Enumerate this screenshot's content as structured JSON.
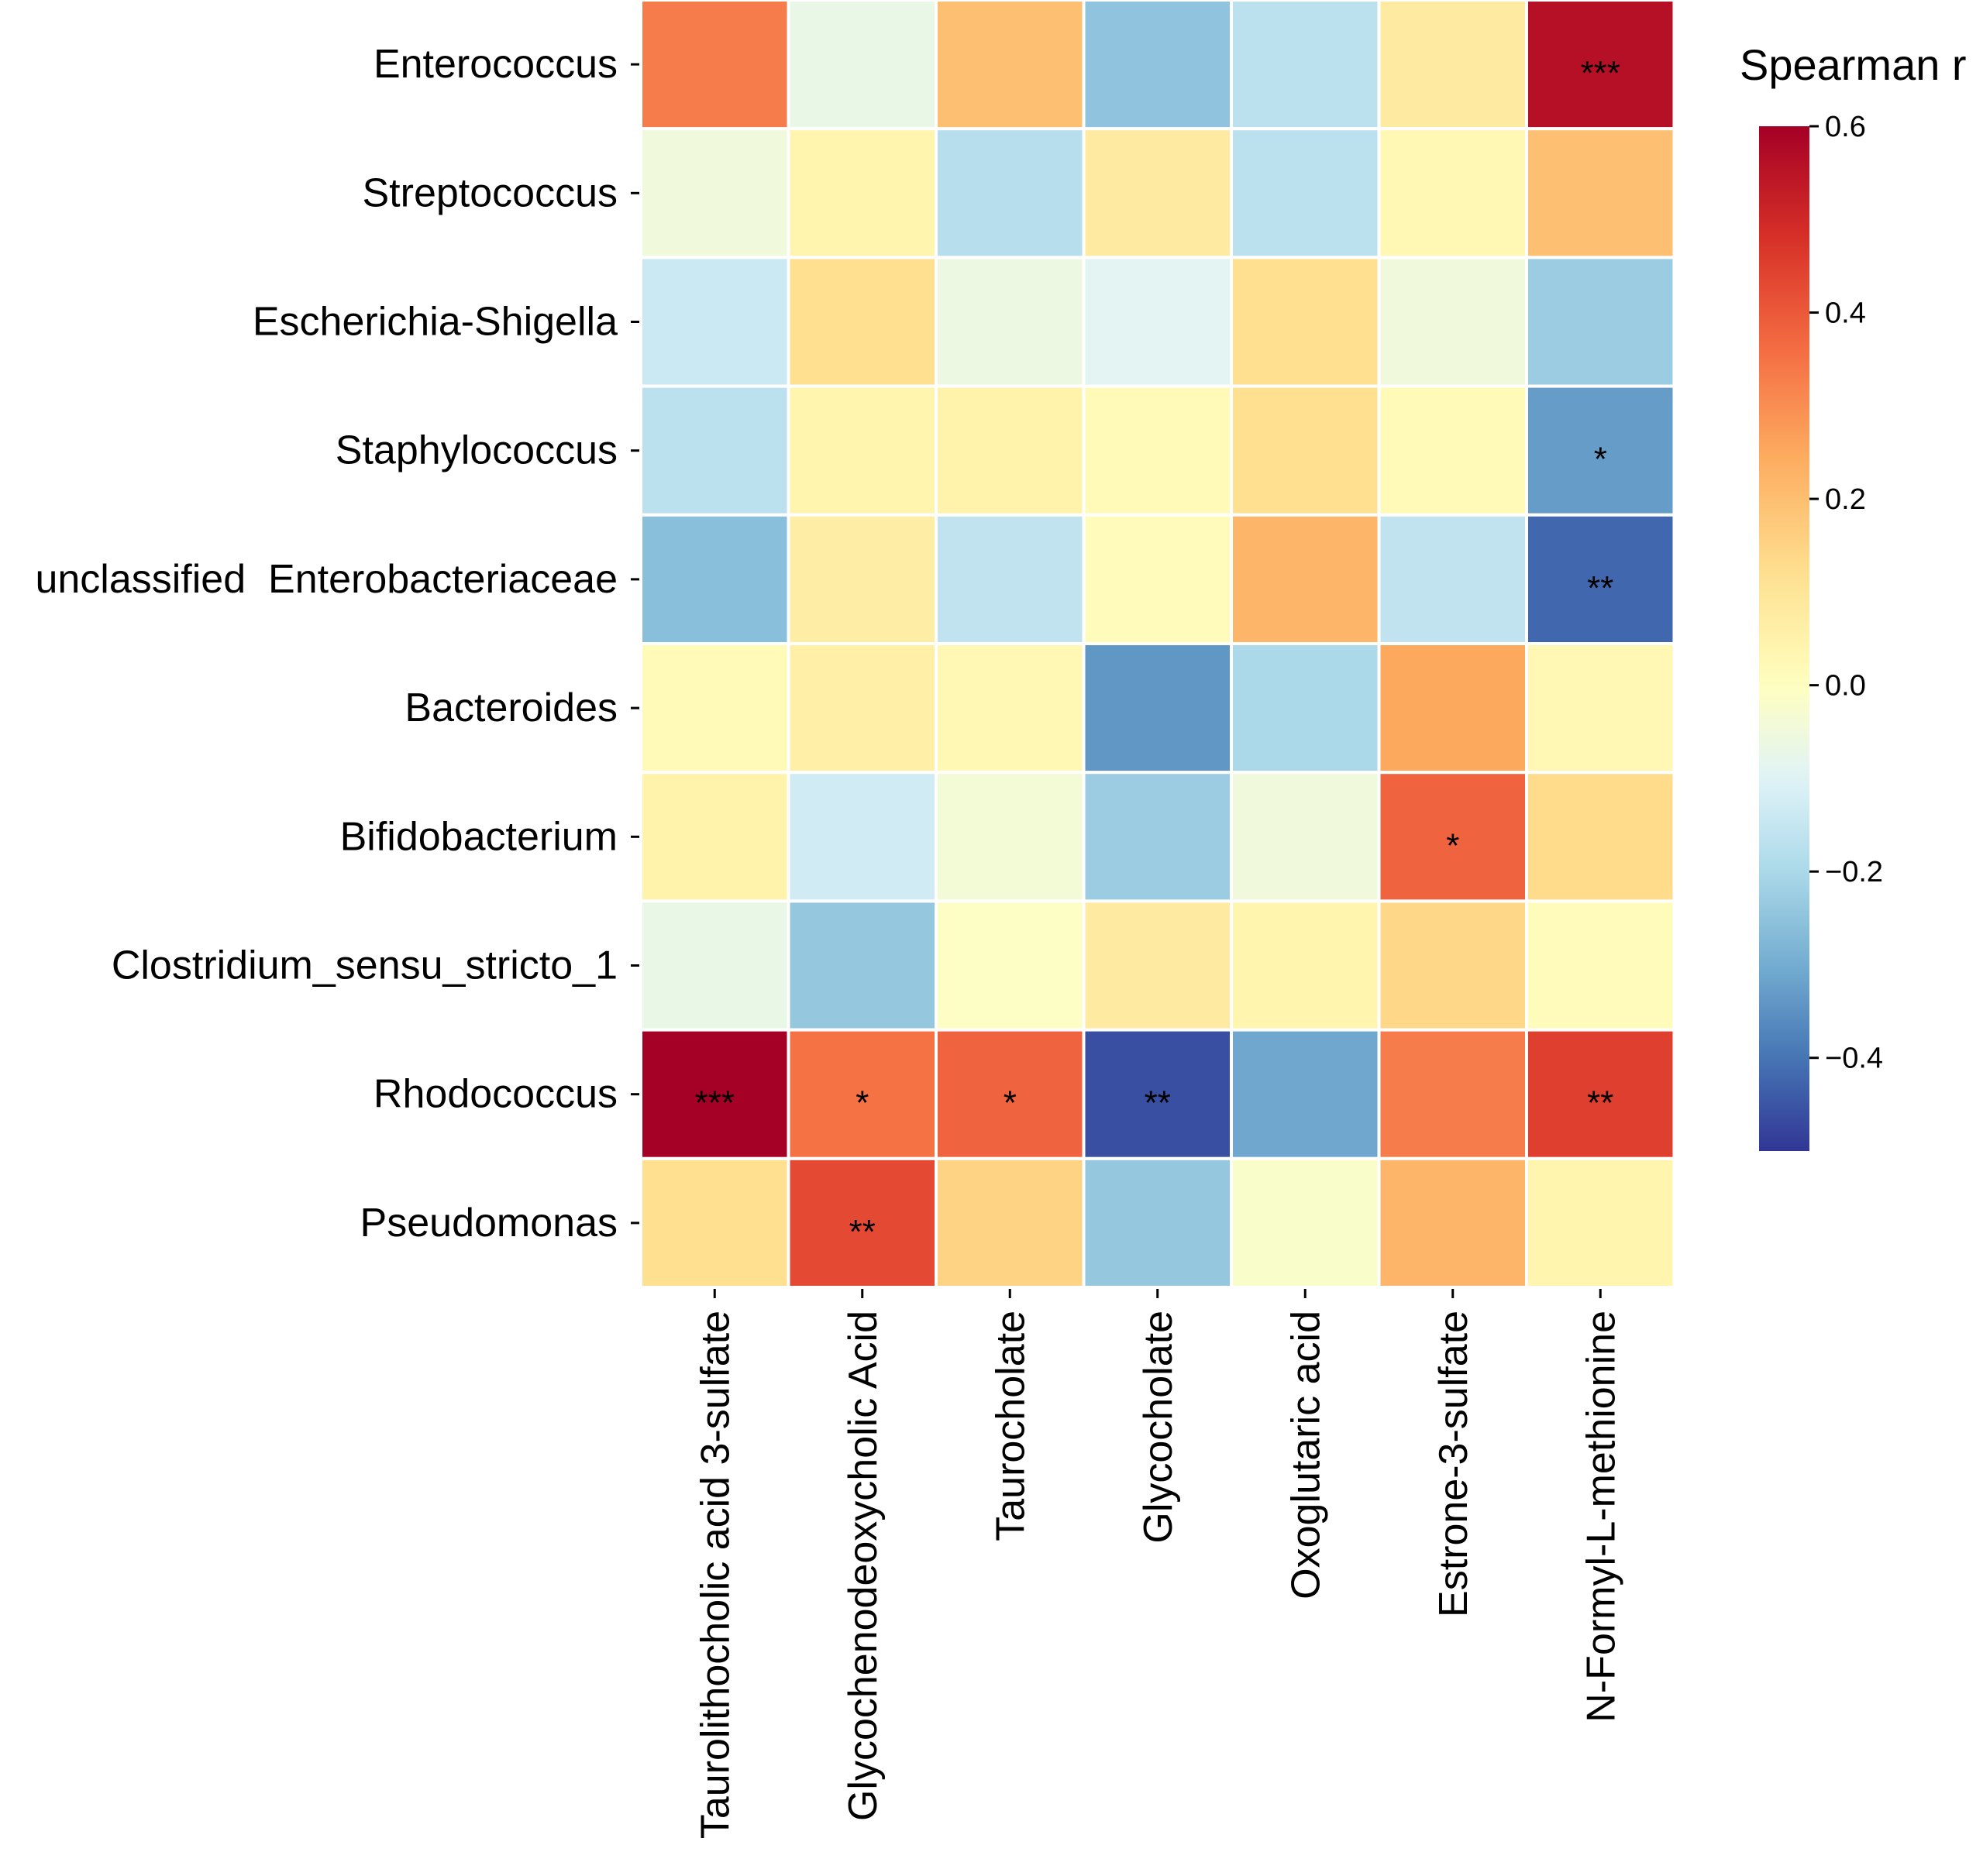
{
  "chart_data": {
    "type": "heatmap",
    "title": "",
    "xlabel": "",
    "ylabel": "",
    "rows": [
      "Enterococcus",
      "Streptococcus",
      "Escherichia-Shigella",
      "Staphylococcus",
      "unclassified  Enterobacteriaceae",
      "Bacteroides",
      "Bifidobacterium",
      "Clostridium_sensu_stricto_1",
      "Rhodococcus",
      "Pseudomonas"
    ],
    "columns": [
      "Taurolithocholic acid 3-sulfate",
      "Glycochenodeoxycholic Acid",
      "Taurocholate",
      "Glycocholate",
      "Oxoglutaric acid",
      "Estrone-3-sulfate",
      "N-Formyl-L-methionine"
    ],
    "values": [
      [
        0.33,
        -0.07,
        0.2,
        -0.25,
        -0.17,
        0.08,
        0.56
      ],
      [
        -0.05,
        0.04,
        -0.18,
        0.08,
        -0.17,
        0.03,
        0.2
      ],
      [
        -0.14,
        0.12,
        -0.06,
        -0.09,
        0.12,
        -0.05,
        -0.23
      ],
      [
        -0.17,
        0.04,
        0.05,
        0.02,
        0.12,
        0.02,
        -0.33
      ],
      [
        -0.26,
        0.07,
        -0.16,
        0.01,
        0.22,
        -0.16,
        -0.42
      ],
      [
        0.02,
        0.06,
        0.03,
        -0.34,
        -0.2,
        0.25,
        0.03
      ],
      [
        0.05,
        -0.13,
        -0.04,
        -0.23,
        -0.05,
        0.38,
        0.13
      ],
      [
        -0.07,
        -0.24,
        -0.01,
        0.08,
        0.04,
        0.14,
        0.01
      ],
      [
        0.6,
        0.35,
        0.38,
        -0.46,
        -0.31,
        0.33,
        0.45
      ],
      [
        0.12,
        0.43,
        0.15,
        -0.24,
        -0.02,
        0.22,
        0.04
      ]
    ],
    "significance": [
      [
        "",
        "",
        "",
        "",
        "",
        "",
        "***"
      ],
      [
        "",
        "",
        "",
        "",
        "",
        "",
        ""
      ],
      [
        "",
        "",
        "",
        "",
        "",
        "",
        ""
      ],
      [
        "",
        "",
        "",
        "",
        "",
        "",
        "*"
      ],
      [
        "",
        "",
        "",
        "",
        "",
        "",
        "**"
      ],
      [
        "",
        "",
        "",
        "",
        "",
        "",
        ""
      ],
      [
        "",
        "",
        "",
        "",
        "",
        "*",
        ""
      ],
      [
        "",
        "",
        "",
        "",
        "",
        "",
        ""
      ],
      [
        "***",
        "*",
        "*",
        "**",
        "",
        "",
        "**"
      ],
      [
        "",
        "**",
        "",
        "",
        "",
        "",
        ""
      ]
    ],
    "colorbar": {
      "label": "Spearman r",
      "range": [
        -0.5,
        0.6
      ],
      "ticks": [
        -0.4,
        -0.2,
        0.0,
        0.2,
        0.4,
        0.6
      ],
      "tick_labels": [
        "−0.4",
        "−0.2",
        "0.0",
        "0.2",
        "0.4",
        "0.6"
      ],
      "colormap": "RdYlBu_r"
    }
  }
}
